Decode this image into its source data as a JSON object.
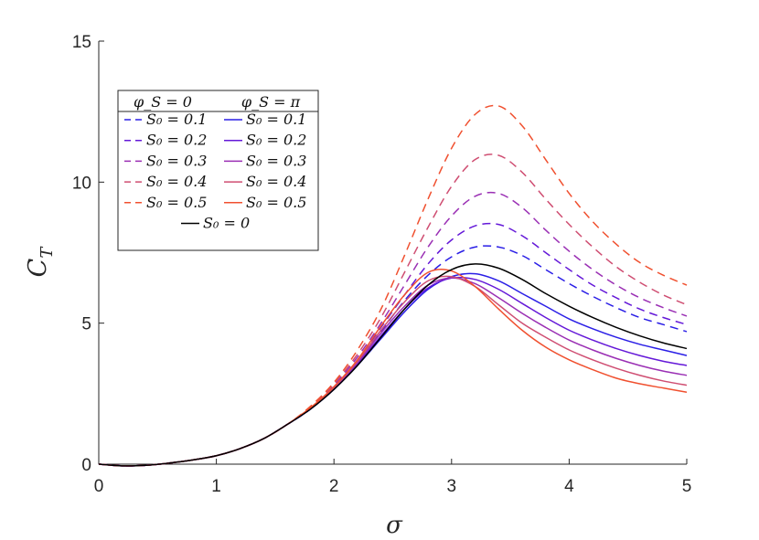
{
  "chart_data": {
    "type": "line",
    "xlabel": "σ",
    "ylabel_main": "C",
    "ylabel_sub": "T",
    "xlim": [
      0,
      5
    ],
    "ylim": [
      0,
      15
    ],
    "xticks": [
      "0",
      "1",
      "2",
      "3",
      "4",
      "5"
    ],
    "yticks": [
      "0",
      "5",
      "10",
      "15"
    ],
    "grid": false,
    "legend": {
      "placement": "top-left",
      "header_left": "φ_S = 0",
      "header_right": "φ_S = π"
    },
    "colors": {
      "S01": "#2a1ee6",
      "S02": "#6418d8",
      "S03": "#9a2fb4",
      "S04": "#cf4e72",
      "S05": "#f0502f",
      "S00": "#000000"
    },
    "x": [
      0,
      0.2,
      0.4,
      0.6,
      0.8,
      1.0,
      1.2,
      1.4,
      1.6,
      1.8,
      2.0,
      2.2,
      2.4,
      2.6,
      2.8,
      3.0,
      3.2,
      3.4,
      3.6,
      3.8,
      4.0,
      4.2,
      4.4,
      4.6,
      4.8,
      5.0
    ],
    "series": [
      {
        "name": "S₀ = 0.1",
        "phase": "0",
        "key": "S01",
        "dash": true,
        "values": [
          0,
          -0.06,
          -0.04,
          0.04,
          0.15,
          0.3,
          0.55,
          0.9,
          1.4,
          1.95,
          2.7,
          3.6,
          4.7,
          5.8,
          6.7,
          7.35,
          7.7,
          7.7,
          7.4,
          6.9,
          6.4,
          5.95,
          5.55,
          5.2,
          4.95,
          4.7
        ]
      },
      {
        "name": "S₀ = 0.2",
        "phase": "0",
        "key": "S02",
        "dash": true,
        "values": [
          0,
          -0.06,
          -0.04,
          0.04,
          0.15,
          0.3,
          0.55,
          0.9,
          1.4,
          1.97,
          2.75,
          3.7,
          4.85,
          6.0,
          7.1,
          7.95,
          8.45,
          8.5,
          8.1,
          7.5,
          6.9,
          6.35,
          5.9,
          5.5,
          5.2,
          4.95
        ]
      },
      {
        "name": "S₀ = 0.3",
        "phase": "0",
        "key": "S03",
        "dash": true,
        "values": [
          0,
          -0.06,
          -0.04,
          0.04,
          0.15,
          0.3,
          0.55,
          0.9,
          1.4,
          2.0,
          2.8,
          3.8,
          5.0,
          6.35,
          7.7,
          8.8,
          9.5,
          9.6,
          9.1,
          8.3,
          7.55,
          6.9,
          6.35,
          5.9,
          5.55,
          5.25
        ]
      },
      {
        "name": "S₀ = 0.4",
        "phase": "0",
        "key": "S04",
        "dash": true,
        "values": [
          0,
          -0.06,
          -0.04,
          0.04,
          0.15,
          0.3,
          0.55,
          0.9,
          1.4,
          2.0,
          2.85,
          3.9,
          5.2,
          6.8,
          8.4,
          9.85,
          10.8,
          10.95,
          10.35,
          9.4,
          8.5,
          7.7,
          7.0,
          6.45,
          6.0,
          5.65
        ]
      },
      {
        "name": "S₀ = 0.5",
        "phase": "0",
        "key": "S05",
        "dash": true,
        "values": [
          0,
          -0.06,
          -0.04,
          0.04,
          0.15,
          0.3,
          0.55,
          0.9,
          1.4,
          2.05,
          2.9,
          4.05,
          5.5,
          7.4,
          9.4,
          11.2,
          12.4,
          12.7,
          12.0,
          10.8,
          9.6,
          8.6,
          7.8,
          7.15,
          6.7,
          6.35
        ]
      },
      {
        "name": "S₀ = 0.1",
        "phase": "π",
        "key": "S01",
        "dash": false,
        "values": [
          0,
          -0.06,
          -0.04,
          0.04,
          0.15,
          0.3,
          0.55,
          0.9,
          1.4,
          1.95,
          2.65,
          3.5,
          4.45,
          5.4,
          6.2,
          6.65,
          6.75,
          6.5,
          6.05,
          5.6,
          5.15,
          4.8,
          4.5,
          4.25,
          4.05,
          3.85
        ]
      },
      {
        "name": "S₀ = 0.2",
        "phase": "π",
        "key": "S02",
        "dash": false,
        "values": [
          0,
          -0.06,
          -0.04,
          0.04,
          0.15,
          0.3,
          0.55,
          0.9,
          1.4,
          1.96,
          2.68,
          3.55,
          4.55,
          5.5,
          6.25,
          6.6,
          6.55,
          6.2,
          5.7,
          5.2,
          4.75,
          4.4,
          4.1,
          3.85,
          3.65,
          3.5
        ]
      },
      {
        "name": "S₀ = 0.3",
        "phase": "π",
        "key": "S03",
        "dash": false,
        "values": [
          0,
          -0.06,
          -0.04,
          0.04,
          0.15,
          0.3,
          0.55,
          0.9,
          1.4,
          1.97,
          2.7,
          3.6,
          4.65,
          5.6,
          6.35,
          6.6,
          6.4,
          5.9,
          5.35,
          4.85,
          4.4,
          4.05,
          3.75,
          3.5,
          3.3,
          3.15
        ]
      },
      {
        "name": "S₀ = 0.4",
        "phase": "π",
        "key": "S04",
        "dash": false,
        "values": [
          0,
          -0.06,
          -0.04,
          0.04,
          0.15,
          0.3,
          0.55,
          0.9,
          1.4,
          1.98,
          2.72,
          3.65,
          4.75,
          5.75,
          6.5,
          6.65,
          6.3,
          5.65,
          5.0,
          4.5,
          4.05,
          3.7,
          3.4,
          3.15,
          2.95,
          2.8
        ]
      },
      {
        "name": "S₀ = 0.5",
        "phase": "π",
        "key": "S05",
        "dash": false,
        "values": [
          0,
          -0.06,
          -0.04,
          0.04,
          0.15,
          0.3,
          0.55,
          0.9,
          1.4,
          2.0,
          2.75,
          3.7,
          4.9,
          6.0,
          6.8,
          6.85,
          6.3,
          5.5,
          4.75,
          4.15,
          3.7,
          3.35,
          3.05,
          2.85,
          2.7,
          2.55
        ]
      },
      {
        "name": "S₀ = 0",
        "phase": "",
        "key": "S00",
        "dash": false,
        "values": [
          0,
          -0.06,
          -0.04,
          0.04,
          0.15,
          0.3,
          0.55,
          0.9,
          1.4,
          1.95,
          2.65,
          3.5,
          4.5,
          5.5,
          6.35,
          6.9,
          7.1,
          6.95,
          6.55,
          6.05,
          5.6,
          5.2,
          4.85,
          4.55,
          4.3,
          4.1
        ]
      }
    ]
  }
}
